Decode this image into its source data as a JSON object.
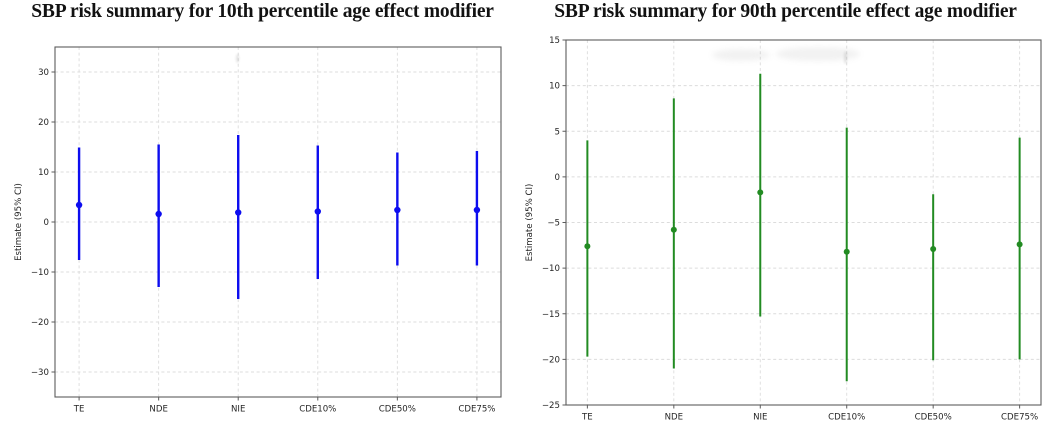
{
  "figure": {
    "background": "#ffffff",
    "grid": true,
    "legend": "none"
  },
  "chart_data": [
    {
      "type": "scatter",
      "subtype": "point-estimate-with-95ci-errorbars",
      "title": "SBP risk summary for 10th percentile age effect modifier",
      "xlabel": "",
      "ylabel": "Estimate (95% CI)",
      "categories": [
        "TE",
        "NDE",
        "NIE",
        "CDE10%",
        "CDE50%",
        "CDE75%"
      ],
      "series": [
        {
          "name": "Estimate",
          "values": [
            3.4,
            1.6,
            1.9,
            2.1,
            2.4,
            2.4
          ],
          "ci_low": [
            -7.6,
            -13.0,
            -15.4,
            -11.4,
            -8.7,
            -8.7
          ],
          "ci_high": [
            14.9,
            15.5,
            17.4,
            15.3,
            13.9,
            14.2
          ]
        }
      ],
      "ylim": [
        -35,
        35
      ],
      "yticks": [
        30,
        20,
        10,
        0,
        -10,
        -20,
        -30
      ],
      "grid": true,
      "legend_position": "none",
      "color": "#0d0def"
    },
    {
      "type": "scatter",
      "subtype": "point-estimate-with-95ci-errorbars",
      "title": "SBP risk summary for 90th percentile effect age modifier",
      "xlabel": "",
      "ylabel": "Estimate (95% CI)",
      "categories": [
        "TE",
        "NDE",
        "NIE",
        "CDE10%",
        "CDE50%",
        "CDE75%"
      ],
      "series": [
        {
          "name": "Estimate",
          "values": [
            -7.6,
            -5.8,
            -1.7,
            -8.2,
            -7.9,
            -7.4
          ],
          "ci_low": [
            -19.7,
            -21.0,
            -15.3,
            -22.4,
            -20.1,
            -20.0
          ],
          "ci_high": [
            4.0,
            8.6,
            11.3,
            5.4,
            -1.9,
            4.3
          ]
        }
      ],
      "ylim": [
        -25,
        15
      ],
      "yticks": [
        15,
        10,
        5,
        0,
        -5,
        -10,
        -15,
        -20,
        -25
      ],
      "grid": true,
      "legend_position": "none",
      "color": "#228b22"
    }
  ],
  "style_colors": {
    "gridline": "#dcdcdc",
    "plot_border": "#5c5c5c",
    "tick_text": "#262626",
    "axis_label_text": "#262626"
  }
}
